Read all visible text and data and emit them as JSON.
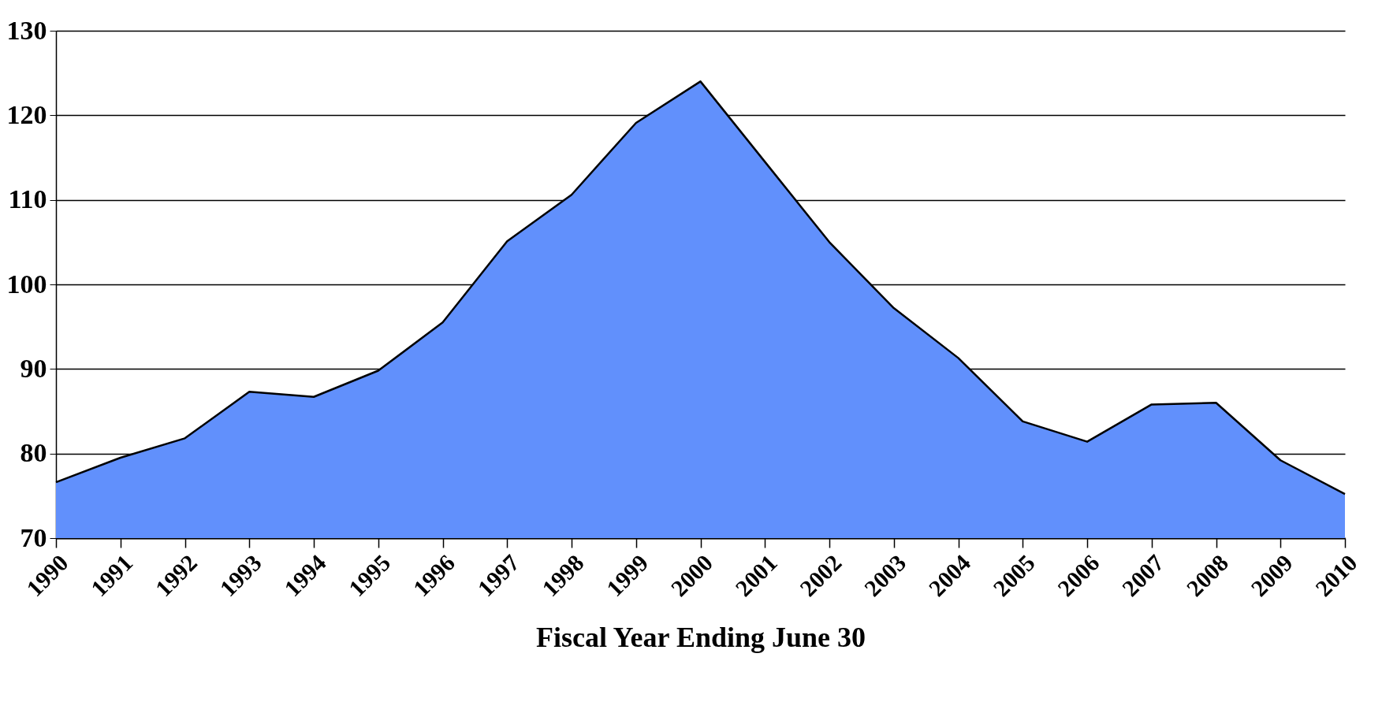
{
  "chart_data": {
    "type": "area",
    "xlabel": "Fiscal Year Ending June 30",
    "categories": [
      "1990",
      "1991",
      "1992",
      "1993",
      "1994",
      "1995",
      "1996",
      "1997",
      "1998",
      "1999",
      "2000",
      "2001",
      "2002",
      "2003",
      "2004",
      "2005",
      "2006",
      "2007",
      "2008",
      "2009",
      "2010"
    ],
    "series": [
      {
        "color": "#6190fc",
        "values": [
          76.6,
          79.5,
          81.8,
          87.3,
          86.7,
          89.8,
          95.5,
          105.1,
          110.6,
          119.1,
          124.0,
          114.5,
          105.0,
          97.2,
          91.3,
          83.8,
          81.4,
          85.8,
          86.0,
          79.2,
          75.2
        ]
      }
    ],
    "ylim": [
      70,
      130
    ],
    "yticks": [
      70,
      80,
      90,
      100,
      110,
      120,
      130
    ],
    "grid": "y"
  }
}
